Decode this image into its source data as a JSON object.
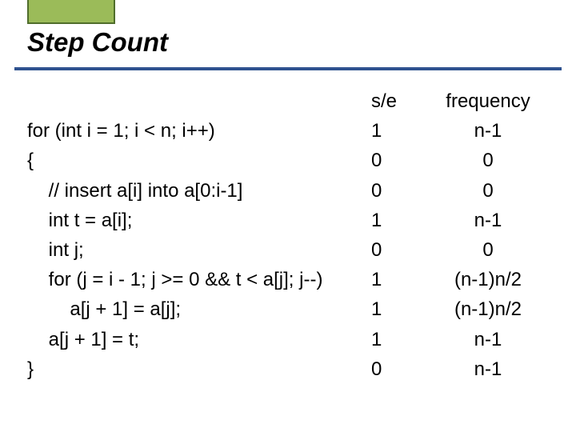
{
  "accent_color": "#9bbb59",
  "accent_border": "#506e2c",
  "rule_color": "#2f528f",
  "title": "Step Count",
  "title_fontsize": 33,
  "body_fontsize": 24,
  "columns": {
    "se": "s/e",
    "freq": "frequency"
  },
  "rows": [
    {
      "code": "for (int i = 1; i < n; i++)",
      "se": "1",
      "freq": "n-1"
    },
    {
      "code": "{",
      "se": "0",
      "freq": "0"
    },
    {
      "code": "    // insert a[i] into a[0:i-1]",
      "se": "0",
      "freq": "0"
    },
    {
      "code": "    int t = a[i];",
      "se": "1",
      "freq": "n-1"
    },
    {
      "code": "    int j;",
      "se": "0",
      "freq": "0"
    },
    {
      "code": "    for (j = i - 1; j >= 0 && t < a[j]; j--)",
      "se": "1",
      "freq": "(n-1)n/2"
    },
    {
      "code": "        a[j + 1] = a[j];",
      "se": "1",
      "freq": "(n-1)n/2"
    },
    {
      "code": "    a[j + 1] = t;",
      "se": "1",
      "freq": "n-1"
    },
    {
      "code": "}",
      "se": "0",
      "freq": "n-1"
    }
  ]
}
